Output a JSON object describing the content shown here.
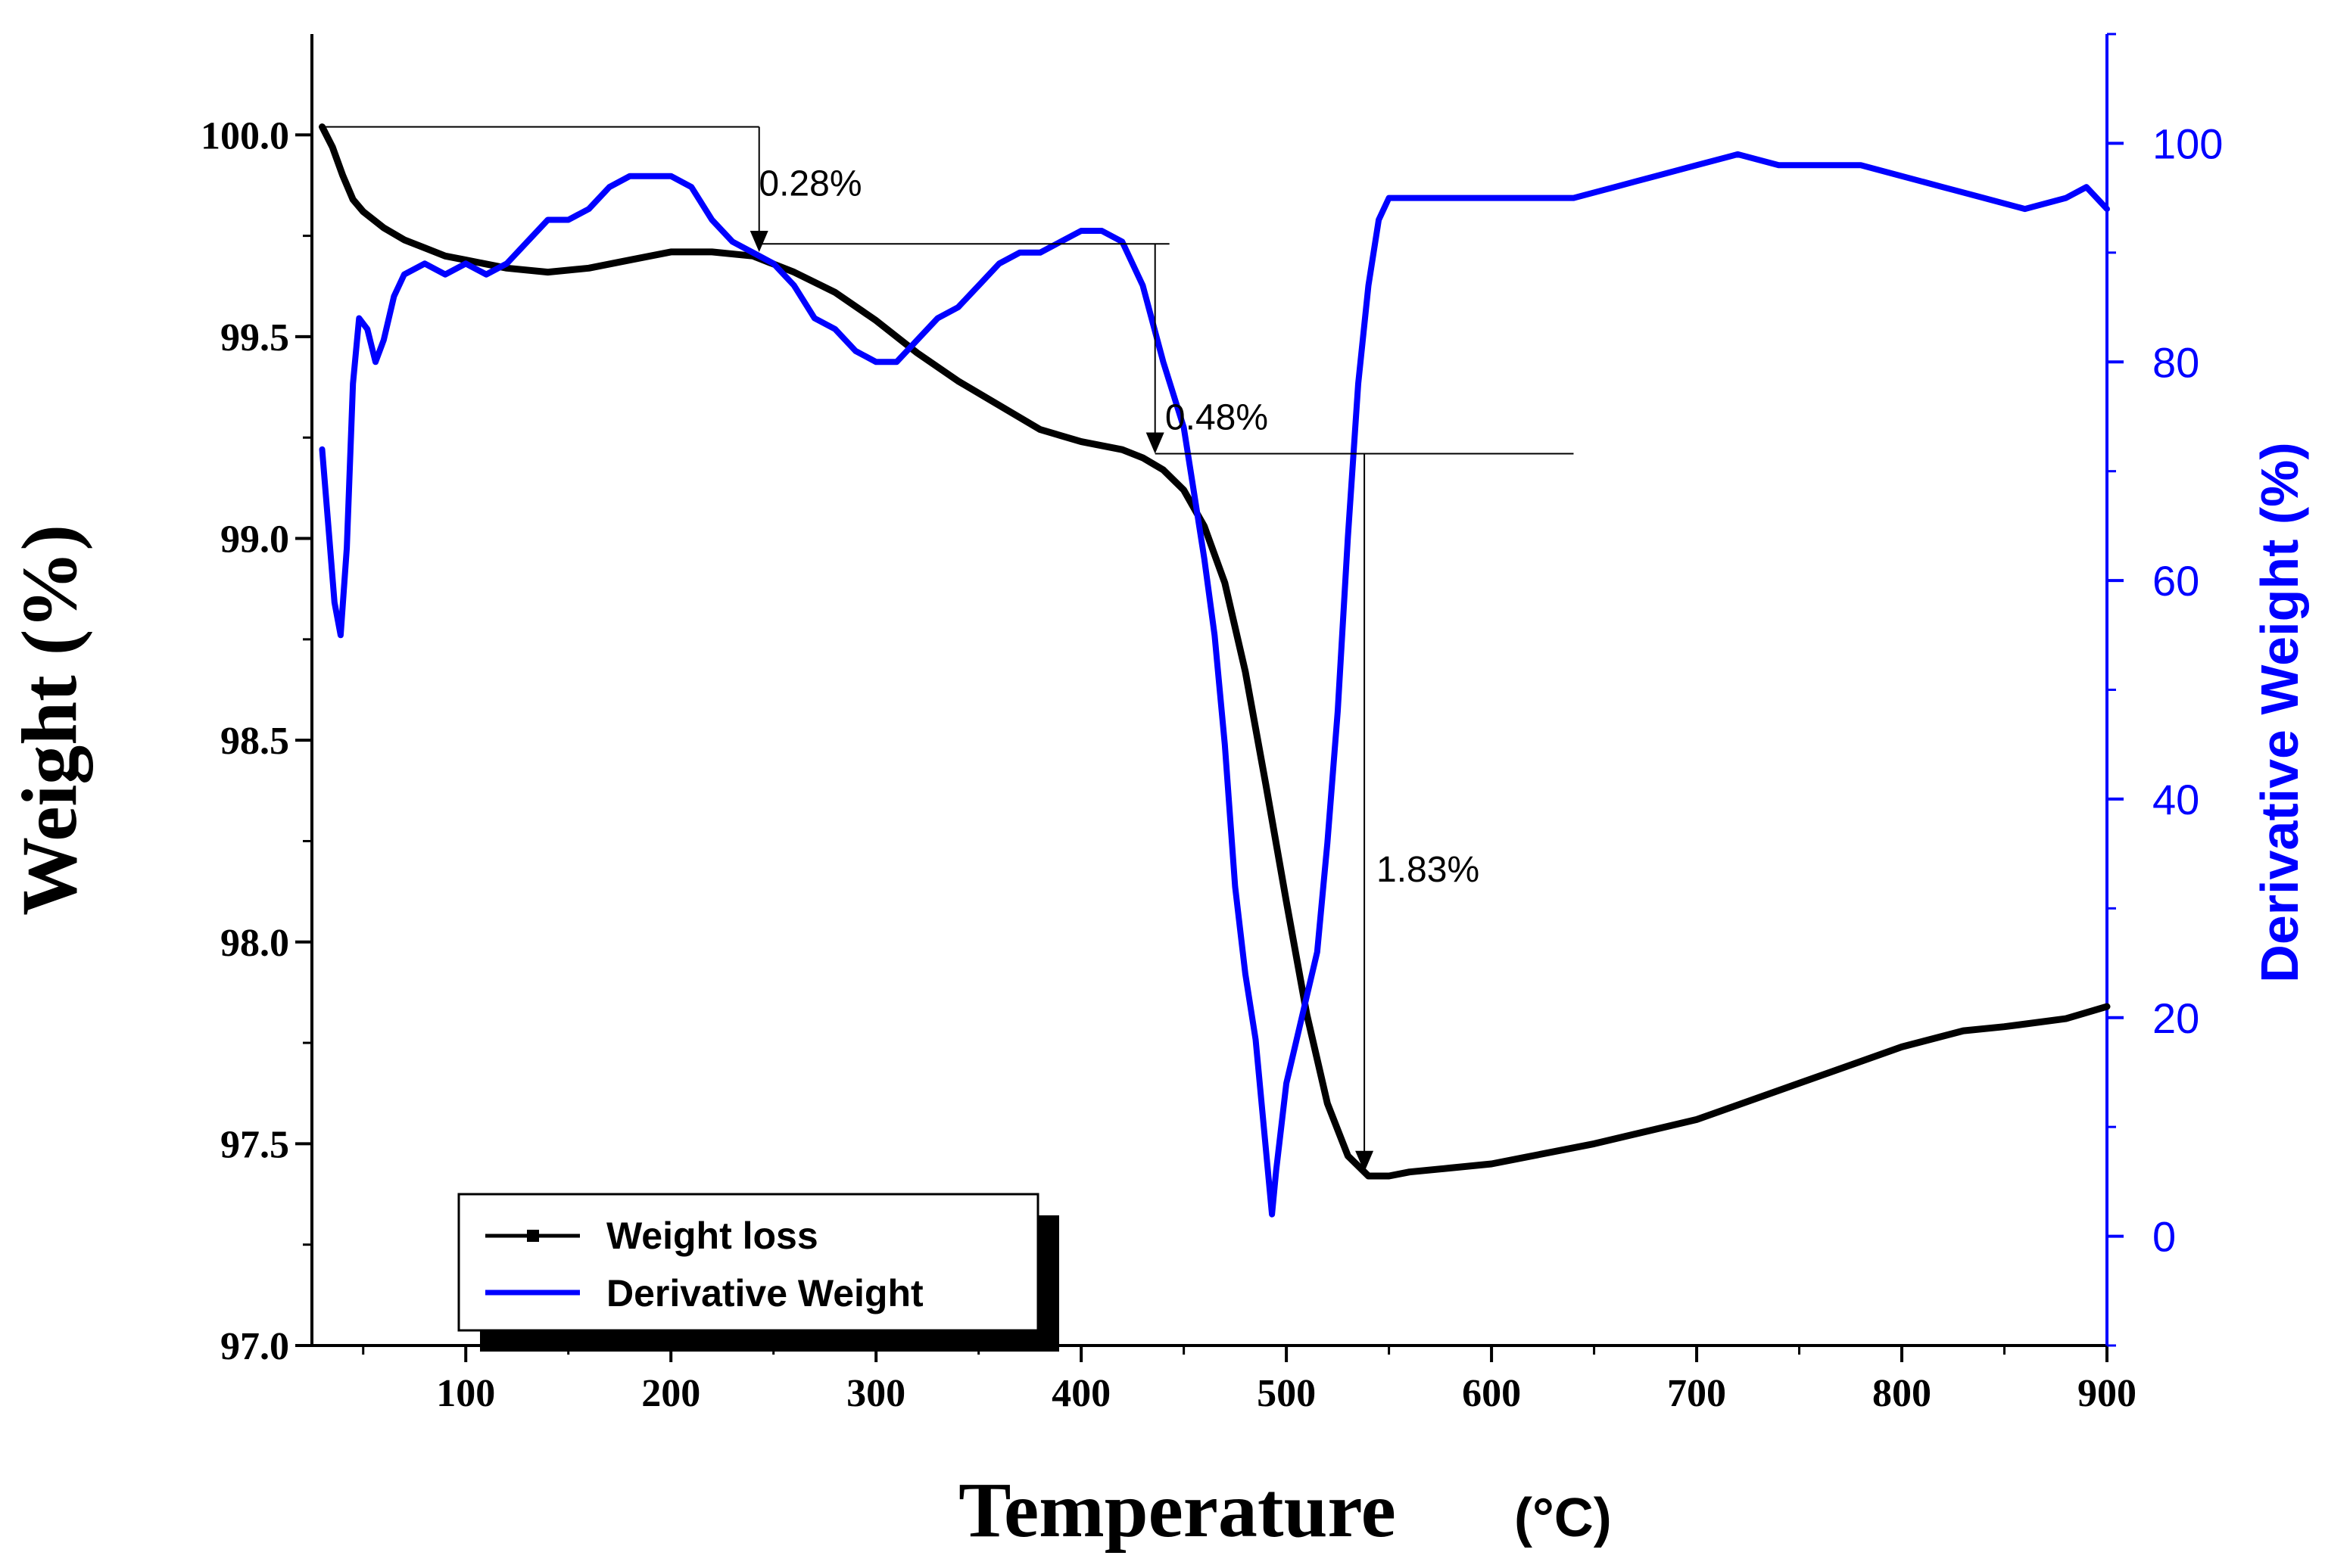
{
  "chart_data": {
    "type": "line",
    "xlabel": "Temperature",
    "xlabel_unit": "(°C)",
    "ylabel_left": "Weight (%)",
    "ylabel_right": "Derivative Weight (%)",
    "xlim": [
      25,
      900
    ],
    "ylim_left": [
      97.0,
      100.25
    ],
    "ylim_right": [
      -10,
      110
    ],
    "x_ticks": [
      100,
      200,
      300,
      400,
      500,
      600,
      700,
      800,
      900
    ],
    "x_tick_labels": [
      "100",
      "200",
      "300",
      "400",
      "500",
      "600",
      "700",
      "800",
      "900"
    ],
    "y_left_ticks": [
      97.0,
      97.5,
      98.0,
      98.5,
      99.0,
      99.5,
      100.0
    ],
    "y_left_tick_labels": [
      "97.0",
      "97.5",
      "98.0",
      "98.5",
      "99.0",
      "99.5",
      "100.0"
    ],
    "y_right_ticks": [
      0,
      20,
      40,
      60,
      80,
      100
    ],
    "y_right_tick_labels": [
      "0",
      "20",
      "40",
      "60",
      "80",
      "100"
    ],
    "legend": [
      {
        "name": "Weight loss",
        "color": "#000000"
      },
      {
        "name": "Derivative Weight",
        "color": "#0000ff"
      }
    ],
    "legend_position": "bottom-left",
    "series": [
      {
        "name": "Weight loss",
        "axis": "left",
        "color": "#000000",
        "x": [
          30,
          35,
          40,
          45,
          50,
          60,
          70,
          80,
          90,
          100,
          120,
          140,
          160,
          180,
          200,
          220,
          240,
          260,
          280,
          300,
          320,
          340,
          360,
          380,
          400,
          420,
          430,
          440,
          450,
          460,
          470,
          480,
          490,
          500,
          510,
          520,
          530,
          540,
          550,
          560,
          580,
          600,
          650,
          700,
          750,
          800,
          830,
          850,
          880,
          900
        ],
        "y": [
          100.02,
          99.97,
          99.9,
          99.84,
          99.81,
          99.77,
          99.74,
          99.72,
          99.7,
          99.69,
          99.67,
          99.66,
          99.67,
          99.69,
          99.71,
          99.71,
          99.7,
          99.66,
          99.61,
          99.54,
          99.46,
          99.39,
          99.33,
          99.27,
          99.24,
          99.22,
          99.2,
          99.17,
          99.12,
          99.03,
          98.89,
          98.67,
          98.39,
          98.1,
          97.82,
          97.6,
          97.47,
          97.42,
          97.42,
          97.43,
          97.44,
          97.45,
          97.5,
          97.56,
          97.65,
          97.74,
          97.78,
          97.79,
          97.81,
          97.84
        ]
      },
      {
        "name": "Derivative Weight",
        "axis": "right",
        "color": "#0000ff",
        "x": [
          30,
          33,
          36,
          39,
          42,
          45,
          48,
          52,
          56,
          60,
          65,
          70,
          80,
          90,
          100,
          110,
          120,
          130,
          140,
          150,
          160,
          170,
          180,
          190,
          200,
          210,
          220,
          230,
          240,
          250,
          260,
          270,
          280,
          290,
          300,
          310,
          320,
          330,
          340,
          350,
          360,
          370,
          380,
          390,
          400,
          410,
          420,
          430,
          440,
          450,
          455,
          460,
          465,
          470,
          475,
          480,
          485,
          490,
          493,
          495,
          500,
          505,
          510,
          515,
          520,
          525,
          530,
          535,
          540,
          545,
          550,
          560,
          580,
          600,
          620,
          640,
          660,
          680,
          700,
          720,
          740,
          760,
          780,
          800,
          820,
          840,
          860,
          880,
          890,
          900
        ],
        "y": [
          72,
          65,
          58,
          55,
          63,
          78,
          84,
          83,
          80,
          82,
          86,
          88,
          89,
          88,
          89,
          88,
          89,
          91,
          93,
          93,
          94,
          96,
          97,
          97,
          97,
          96,
          93,
          91,
          90,
          89,
          87,
          84,
          83,
          81,
          80,
          80,
          82,
          84,
          85,
          87,
          89,
          90,
          90,
          91,
          92,
          92,
          91,
          87,
          80,
          74,
          68,
          62,
          55,
          45,
          32,
          24,
          18,
          8,
          2,
          6,
          14,
          18,
          22,
          26,
          36,
          48,
          64,
          78,
          87,
          93,
          95,
          95,
          95,
          95,
          95,
          95,
          96,
          97,
          98,
          99,
          98,
          98,
          98,
          97,
          96,
          95,
          94,
          95,
          96,
          94
        ]
      }
    ],
    "annotations": [
      {
        "text": "0.28%",
        "x": 268,
        "y": 99.85
      },
      {
        "text": "0.48%",
        "x": 466,
        "y": 99.27
      },
      {
        "text": "1.83%",
        "x": 569,
        "y": 98.15
      }
    ],
    "step_markers": [
      {
        "x_start": 30,
        "x_end": 243,
        "y_from": 100.02,
        "y_to": 99.71,
        "arrow_x": 243
      },
      {
        "x_start": 243,
        "x_end": 443,
        "y_from": 99.73,
        "y_to": 99.21,
        "arrow_x": 436
      },
      {
        "x_start": 436,
        "x_end": 640,
        "y_from": 99.21,
        "y_to": 97.43,
        "arrow_x": 538
      }
    ]
  }
}
